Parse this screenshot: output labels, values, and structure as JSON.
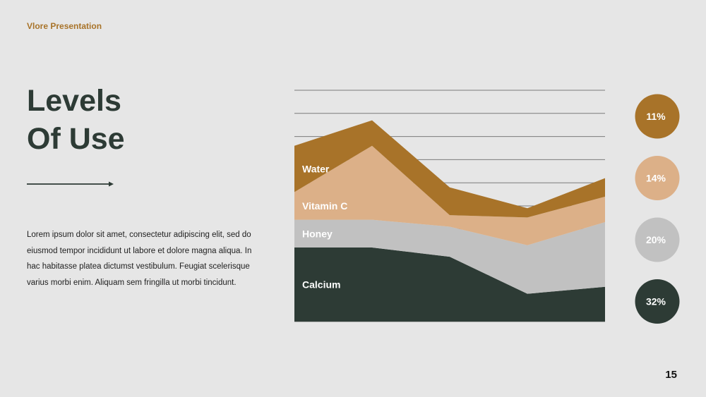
{
  "header": {
    "brand": "Vlore Presentation"
  },
  "title": {
    "line1": "Levels",
    "line2": "Of Use"
  },
  "body_text": "Lorem ipsum dolor sit amet, consectetur adipiscing elit, sed do eiusmod tempor incididunt ut labore et dolore magna aliqua. In hac habitasse platea dictumst vestibulum. Feugiat scelerisque varius morbi enim. Aliquam sem fringilla ut morbi tincidunt.",
  "page_number": "15",
  "colors": {
    "water": "#a87329",
    "vitamin_c": "#dcb088",
    "honey": "#c1c1c1",
    "calcium": "#2d3b35",
    "grid": "#7a7a7a"
  },
  "chart_data": {
    "type": "area",
    "stacked": true,
    "x": [
      1,
      2,
      3,
      4,
      5
    ],
    "ylim": [
      0,
      100
    ],
    "grid": true,
    "series": [
      {
        "name": "Calcium",
        "values": [
          32,
          32,
          28,
          12,
          15
        ],
        "color": "#2d3b35",
        "percent": "32%"
      },
      {
        "name": "Honey",
        "values": [
          12,
          12,
          13,
          21,
          28
        ],
        "color": "#c1c1c1",
        "percent": "20%"
      },
      {
        "name": "Vitamin C",
        "values": [
          12,
          32,
          5,
          12,
          11
        ],
        "color": "#dcb088",
        "percent": "14%"
      },
      {
        "name": "Water",
        "values": [
          20,
          11,
          12,
          4,
          8
        ],
        "color": "#a87329",
        "percent": "11%"
      }
    ]
  }
}
